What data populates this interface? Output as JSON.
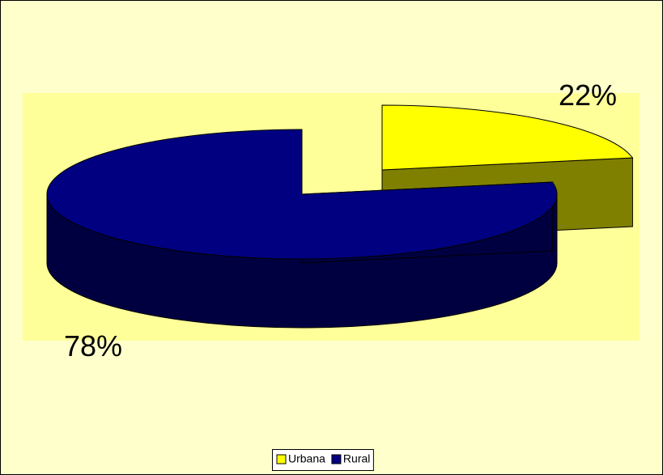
{
  "chart_data": {
    "type": "pie",
    "categories": [
      "Urbana",
      "Rural"
    ],
    "values": [
      22,
      78
    ],
    "value_labels": [
      "22%",
      "78%"
    ],
    "colors": [
      "#ffff00",
      "#000080"
    ],
    "legend": "bottom"
  }
}
